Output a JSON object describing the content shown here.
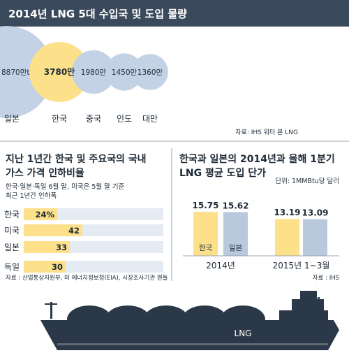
{
  "chart_data": [
    {
      "type": "bubble",
      "title": "2014년 LNG 5대 수입국 및 도입 물량",
      "categories": [
        "일본",
        "한국",
        "중국",
        "인도",
        "대만"
      ],
      "value_labels": [
        "8870만t",
        "3780만",
        "1980만",
        "1450만",
        "1360만"
      ],
      "values": [
        8870,
        3780,
        1980,
        1450,
        1360
      ],
      "unit": "만t",
      "highlight": "한국",
      "source": "자료: IHS 워터 본 LNG"
    },
    {
      "type": "bar",
      "orientation": "horizontal",
      "title_lines": [
        "지난 1년간 한국 및 주요국의 국내",
        "가스 가격 인하비율"
      ],
      "subtitle_lines": [
        "한국·일본·독일 6월 말, 미국은 5월 말 기준",
        "최근 1년간 인하폭"
      ],
      "categories": [
        "한국",
        "미국",
        "일본",
        "독일"
      ],
      "values": [
        24,
        42,
        33,
        30
      ],
      "value_labels": [
        "24%",
        "42",
        "33",
        "30"
      ],
      "xlim": [
        0,
        100
      ],
      "source": "자료 : 산업통상자원부, 미 에너지정보청(EIA), 시장조사기관 퀀들"
    },
    {
      "type": "bar",
      "title_lines": [
        "한국과 일본의 2014년과 올해 1분기",
        "LNG 평균 도입 단가"
      ],
      "unit_label": "단위: 1MMBtu당 달러",
      "categories": [
        "2014년",
        "2015년 1~3월"
      ],
      "series": [
        {
          "name": "한국",
          "values": [
            15.75,
            13.19
          ],
          "value_labels": [
            "15.75",
            "13.19"
          ]
        },
        {
          "name": "일본",
          "values": [
            15.62,
            13.09
          ],
          "value_labels": [
            "15.62",
            "13.09"
          ]
        }
      ],
      "ylim": [
        0,
        20
      ],
      "source": "자료 : IHS"
    }
  ],
  "ship_label": "LNG",
  "colors": {
    "header_bg": "#3a4a5c",
    "korea_yellow": "#fce08a",
    "japan_blue": "#b8c9de",
    "bubble_blue": "#c3d2e4",
    "bar_track": "#e5ebf2",
    "ship_dark": "#2b3847",
    "text_dark": "#1e2a36",
    "divider": "#9aa8b6"
  }
}
